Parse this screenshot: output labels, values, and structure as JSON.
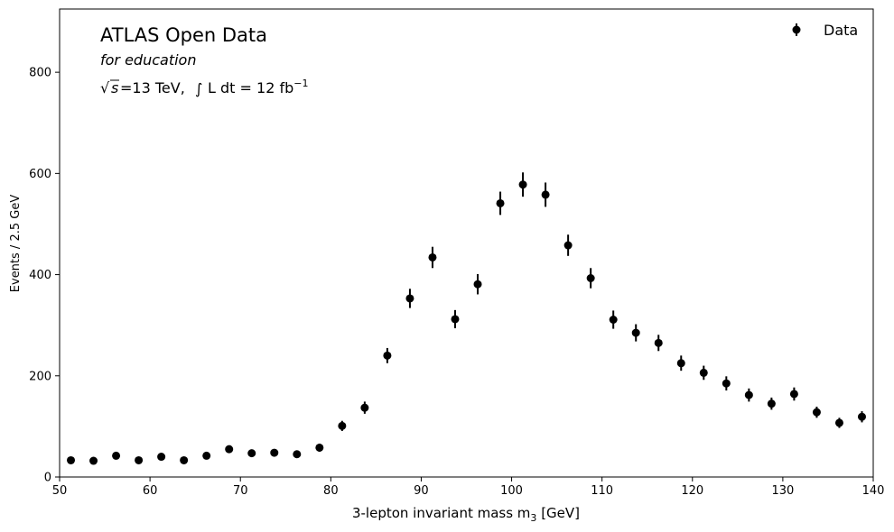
{
  "chart_data": {
    "type": "scatter",
    "xlabel": "3-lepton invariant mass m",
    "xlabel_sub": "3",
    "xlabel_unit": " [GeV]",
    "ylabel": "Events / 2.5 GeV",
    "xlim": [
      50,
      140
    ],
    "ylim": [
      0,
      925
    ],
    "xticks": [
      50,
      60,
      70,
      80,
      90,
      100,
      110,
      120,
      130,
      140
    ],
    "yticks": [
      0,
      200,
      400,
      600,
      800
    ],
    "grid": false,
    "legend_position": "top-right",
    "legend": [
      "Data"
    ],
    "annotations": {
      "title": "ATLAS Open Data",
      "subtitle": "for education",
      "energy": "=13 TeV,",
      "sqrt_s": "s",
      "lumi_text": "L dt = 12 fb",
      "lumi_exp": "−1"
    },
    "series": [
      {
        "name": "Data",
        "color": "#000000",
        "x": [
          51.25,
          53.75,
          56.25,
          58.75,
          61.25,
          63.75,
          66.25,
          68.75,
          71.25,
          73.75,
          76.25,
          78.75,
          81.25,
          83.75,
          86.25,
          88.75,
          91.25,
          93.75,
          96.25,
          98.75,
          101.25,
          103.75,
          106.25,
          108.75,
          111.25,
          113.75,
          116.25,
          118.75,
          121.25,
          123.75,
          126.25,
          128.75,
          131.25,
          133.75,
          136.25,
          138.75
        ],
        "y": [
          33,
          32,
          42,
          33,
          40,
          33,
          42,
          55,
          47,
          48,
          45,
          58,
          101,
          137,
          240,
          353,
          434,
          312,
          381,
          541,
          578,
          558,
          458,
          393,
          311,
          285,
          265,
          225,
          206,
          185,
          162,
          145,
          164,
          128,
          107,
          119
        ],
        "yerr": [
          6,
          6,
          6,
          6,
          6,
          6,
          6,
          7,
          7,
          7,
          7,
          8,
          10,
          12,
          15,
          19,
          21,
          18,
          20,
          23,
          24,
          24,
          21,
          20,
          18,
          17,
          16,
          15,
          14,
          14,
          13,
          12,
          13,
          11,
          10,
          11
        ]
      }
    ]
  }
}
